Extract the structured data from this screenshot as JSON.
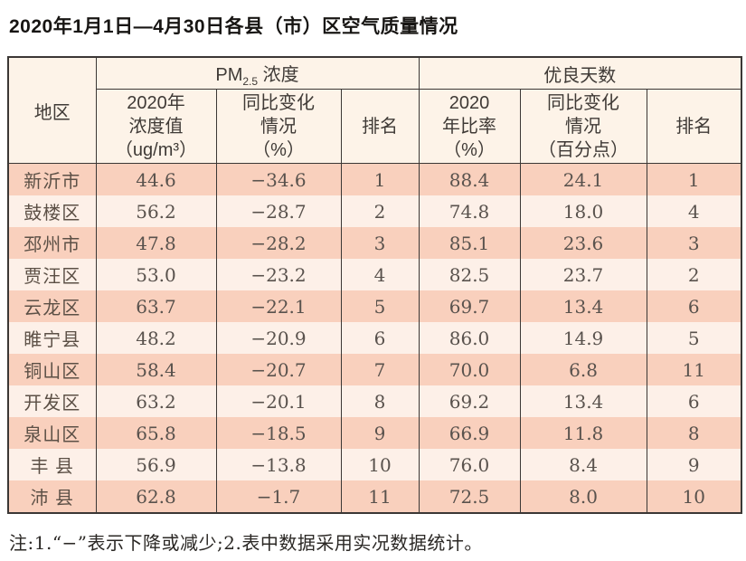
{
  "title": "2020年1月1日—4月30日各县（市）区空气质量情况",
  "table": {
    "region_header": "地区",
    "pm_group": {
      "main": "PM",
      "sub": "2.5",
      "rest": " 浓度"
    },
    "good_group": "优良天数",
    "columns": [
      {
        "key": "pm-value-header",
        "label": "2020年\n浓度值\n（ug/m³）"
      },
      {
        "key": "pm-change-header",
        "label": "同比变化\n情况\n（%）"
      },
      {
        "key": "pm-rank-header",
        "label": "排名"
      },
      {
        "key": "good-rate-header",
        "label": "2020\n年比率\n（%）"
      },
      {
        "key": "good-change-header",
        "label": "同比变化\n情况\n（百分点）"
      },
      {
        "key": "good-rank-header",
        "label": "排名"
      }
    ],
    "rows": [
      {
        "region": "新沂市",
        "pm_value": "44.6",
        "pm_change": "−34.6",
        "pm_rank": "1",
        "good_rate": "88.4",
        "good_change": "24.1",
        "good_rank": "1"
      },
      {
        "region": "鼓楼区",
        "pm_value": "56.2",
        "pm_change": "−28.7",
        "pm_rank": "2",
        "good_rate": "74.8",
        "good_change": "18.0",
        "good_rank": "4"
      },
      {
        "region": "邳州市",
        "pm_value": "47.8",
        "pm_change": "−28.2",
        "pm_rank": "3",
        "good_rate": "85.1",
        "good_change": "23.6",
        "good_rank": "3"
      },
      {
        "region": "贾汪区",
        "pm_value": "53.0",
        "pm_change": "−23.2",
        "pm_rank": "4",
        "good_rate": "82.5",
        "good_change": "23.7",
        "good_rank": "2"
      },
      {
        "region": "云龙区",
        "pm_value": "63.7",
        "pm_change": "−22.1",
        "pm_rank": "5",
        "good_rate": "69.7",
        "good_change": "13.4",
        "good_rank": "6"
      },
      {
        "region": "睢宁县",
        "pm_value": "48.2",
        "pm_change": "−20.9",
        "pm_rank": "6",
        "good_rate": "86.0",
        "good_change": "14.9",
        "good_rank": "5"
      },
      {
        "region": "铜山区",
        "pm_value": "58.4",
        "pm_change": "−20.7",
        "pm_rank": "7",
        "good_rate": "70.0",
        "good_change": "6.8",
        "good_rank": "11"
      },
      {
        "region": "开发区",
        "pm_value": "63.2",
        "pm_change": "−20.1",
        "pm_rank": "8",
        "good_rate": "69.2",
        "good_change": "13.4",
        "good_rank": "6"
      },
      {
        "region": "泉山区",
        "pm_value": "65.8",
        "pm_change": "−18.5",
        "pm_rank": "9",
        "good_rate": "66.9",
        "good_change": "11.8",
        "good_rank": "8"
      },
      {
        "region": "丰 县",
        "pm_value": "56.9",
        "pm_change": "−13.8",
        "pm_rank": "10",
        "good_rate": "76.0",
        "good_change": "8.4",
        "good_rank": "9"
      },
      {
        "region": "沛 县",
        "pm_value": "62.8",
        "pm_change": "−1.7",
        "pm_rank": "11",
        "good_rate": "72.5",
        "good_change": "8.0",
        "good_rank": "10"
      }
    ]
  },
  "note": "注:1.“−”表示下降或减少;2.表中数据采用实况数据统计。",
  "colors": {
    "row_odd": "#f9d0bd",
    "row_even": "#fdf0e8",
    "header_bg": "#fdf3e8",
    "border": "#3b3735"
  }
}
